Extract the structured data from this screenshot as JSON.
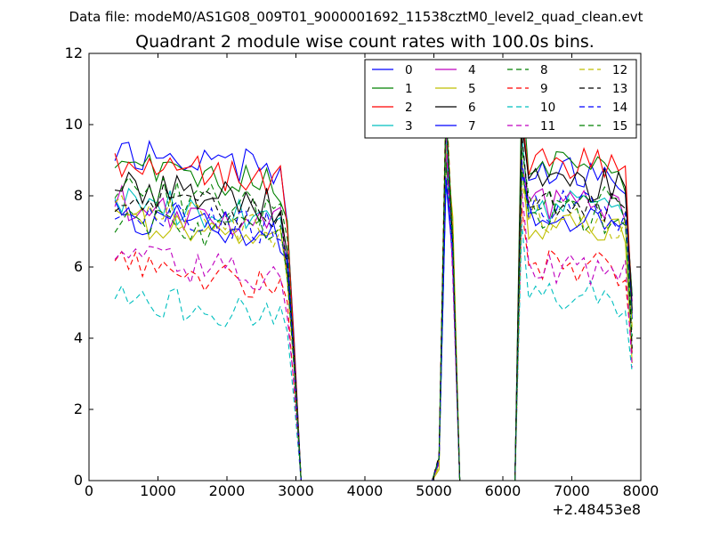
{
  "chart_data": {
    "type": "line",
    "suptitle": "Data file: modeM0/AS1G08_009T01_9000001692_11538cztM0_level2_quad_clean.evt",
    "title": "Quadrant 2 module wise count rates with 100.0s bins.",
    "xlabel": "",
    "ylabel": "",
    "xlim": [
      0,
      8000
    ],
    "ylim": [
      0,
      12
    ],
    "xticks": [
      0,
      1000,
      2000,
      3000,
      4000,
      5000,
      6000,
      7000,
      8000
    ],
    "xtick_labels": [
      "0",
      "1000",
      "2000",
      "3000",
      "4000",
      "5000",
      "6000",
      "7000",
      "8000"
    ],
    "yticks": [
      0,
      2,
      4,
      6,
      8,
      10,
      12
    ],
    "ytick_labels": [
      "0",
      "2",
      "4",
      "6",
      "8",
      "10",
      "12"
    ],
    "x_offset_label": "+2.48453e8",
    "grid": false,
    "legend_position": "top-right",
    "legend_columns": 4,
    "segments": [
      {
        "start": 375,
        "end": 2875,
        "step": 100
      },
      {
        "start": 2975,
        "end": 5075,
        "step": 100
      },
      {
        "start": 5175,
        "end": 5275,
        "step": 100
      },
      {
        "start": 5375,
        "end": 6175,
        "step": 100
      },
      {
        "start": 6275,
        "end": 7875,
        "step": 100
      }
    ],
    "series": [
      {
        "name": "0",
        "color": "#0000ff",
        "style": "solid",
        "level": 9.3,
        "post": 8.8
      },
      {
        "name": "1",
        "color": "#008000",
        "style": "solid",
        "level": 8.9,
        "post": 8.9
      },
      {
        "name": "2",
        "color": "#ff0000",
        "style": "solid",
        "level": 9.0,
        "post": 9.0
      },
      {
        "name": "3",
        "color": "#00bfbf",
        "style": "solid",
        "level": 7.9,
        "post": 7.8
      },
      {
        "name": "4",
        "color": "#bf00bf",
        "style": "solid",
        "level": 7.8,
        "post": 7.9
      },
      {
        "name": "5",
        "color": "#bfbf00",
        "style": "solid",
        "level": 7.4,
        "post": 7.2
      },
      {
        "name": "6",
        "color": "#000000",
        "style": "solid",
        "level": 8.3,
        "post": 8.5
      },
      {
        "name": "7",
        "color": "#0000ff",
        "style": "solid",
        "level": 7.5,
        "post": 7.6
      },
      {
        "name": "8",
        "color": "#008000",
        "style": "dashed",
        "level": 8.2,
        "post": 8.0
      },
      {
        "name": "9",
        "color": "#ff0000",
        "style": "dashed",
        "level": 6.0,
        "post": 6.2
      },
      {
        "name": "10",
        "color": "#00bfbf",
        "style": "dashed",
        "level": 5.2,
        "post": 5.3
      },
      {
        "name": "11",
        "color": "#bf00bf",
        "style": "dashed",
        "level": 6.3,
        "post": 6.1
      },
      {
        "name": "12",
        "color": "#bfbf00",
        "style": "dashed",
        "level": 7.6,
        "post": 7.5
      },
      {
        "name": "13",
        "color": "#000000",
        "style": "dashed",
        "level": 8.0,
        "post": 8.0
      },
      {
        "name": "14",
        "color": "#0000ff",
        "style": "dashed",
        "level": 7.7,
        "post": 7.8
      },
      {
        "name": "15",
        "color": "#008000",
        "style": "dashed",
        "level": 7.4,
        "post": 7.6
      }
    ]
  }
}
